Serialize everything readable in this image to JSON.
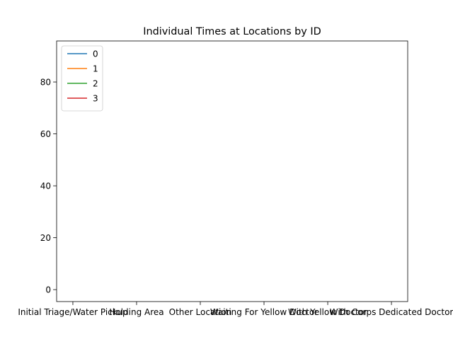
{
  "chart_data": {
    "type": "line",
    "title": "Individual Times at Locations by ID",
    "categories": [
      "Initial Triage/Water Pickup",
      "Holding Area",
      "Other Location",
      "Waiting For Yellow Doctor",
      "With Yellow Doctor",
      "With Corps Dedicated Doctor"
    ],
    "series": [
      {
        "name": "0",
        "color": "#1f77b4",
        "values": [
          null,
          null,
          null,
          null,
          null,
          null
        ]
      },
      {
        "name": "1",
        "color": "#ff7f0e",
        "values": [
          null,
          null,
          null,
          null,
          null,
          null
        ]
      },
      {
        "name": "2",
        "color": "#2ca02c",
        "values": [
          null,
          null,
          null,
          null,
          null,
          null
        ]
      },
      {
        "name": "3",
        "color": "#d62728",
        "values": [
          null,
          null,
          null,
          null,
          null,
          null
        ]
      }
    ],
    "ylim": [
      -4.6,
      95.8
    ],
    "yticks": [
      0,
      20,
      40,
      60,
      80
    ],
    "legend": "upper left",
    "grid": false
  }
}
